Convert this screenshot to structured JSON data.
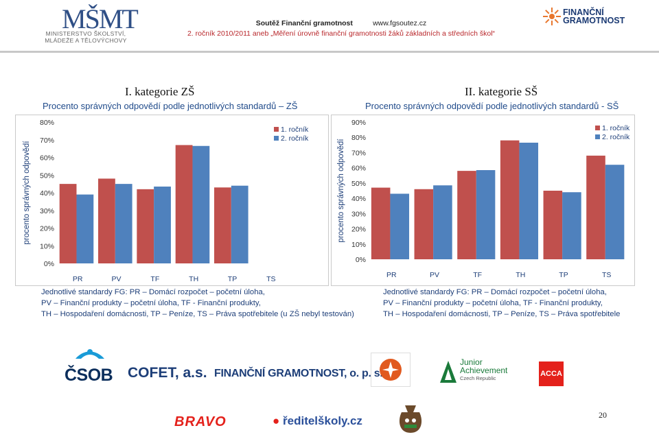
{
  "header": {
    "msmt_letters": "MŠMT",
    "msmt_line1": "MINISTERSTVO ŠKOLSTVÍ,",
    "msmt_line2": "MLÁDEŽE A TĚLOVÝCHOVY",
    "contest": "Soutěž Finanční gramotnost",
    "website": "www.fgsoutez.cz",
    "subtitle": "2. ročník 2010/2011 aneb „Měření úrovně finanční gramotnosti žáků základních a středních škol“",
    "fg_line1": "FINANČNÍ",
    "fg_line2": "GRAMOTNOST"
  },
  "left": {
    "category": "I. kategorie ZŠ",
    "heading": "Procento správných odpovědí podle jednotlivých standardů – ZŠ",
    "desc1": "Jednotlivé standardy FG: PR – Domácí rozpočet – početní úloha,",
    "desc2": "PV – Finanční produkty – početní úloha, TF - Finanční produkty,",
    "desc3": "TH – Hospodaření domácnosti, TP – Peníze, TS – Práva spotřebitele (u ZŠ nebyl testován)"
  },
  "right": {
    "category": "II. kategorie SŠ",
    "heading": "Procento správných odpovědí podle jednotlivých standardů - SŠ",
    "desc1": "Jednotlivé standardy FG: PR – Domácí rozpočet – početní úloha,",
    "desc2": "PV – Finanční produkty – početní úloha, TF - Finanční produkty,",
    "desc3": "TH – Hospodaření domácnosti, TP – Peníze, TS – Práva spotřebitele"
  },
  "sponsors": {
    "csob": "ČSOB",
    "cofet": "COFET, a.s.",
    "fg_ops": "FINANČNÍ GRAMOTNOST, o. p. s.",
    "ja_line1": "Junior",
    "ja_line2": "Achievement",
    "ja_line3": "Czech Republic",
    "acca": "ACCA",
    "bravo": "BRAVO",
    "reditel": "ředitelškoly.cz"
  },
  "page_number": "20",
  "colors": {
    "series1": "#c0504d",
    "series2": "#4f81bd",
    "subtitle": "#b8262a",
    "heading": "#1f4a8a"
  },
  "chart_data": [
    {
      "type": "bar",
      "categories": [
        "PR",
        "PV",
        "TF",
        "TH",
        "TP",
        "TS"
      ],
      "series": [
        {
          "name": "1. ročník",
          "values": [
            45,
            48,
            42,
            67,
            43,
            null
          ]
        },
        {
          "name": "2. ročník",
          "values": [
            39,
            45,
            43.5,
            66.5,
            44,
            null
          ]
        }
      ],
      "ylabel": "procento správných odpovědí",
      "ylim": [
        0,
        80
      ],
      "yticks": [
        "0%",
        "10%",
        "20%",
        "30%",
        "40%",
        "50%",
        "60%",
        "70%",
        "80%"
      ],
      "legend": "top-right",
      "grid": false
    },
    {
      "type": "bar",
      "categories": [
        "PR",
        "PV",
        "TF",
        "TH",
        "TP",
        "TS"
      ],
      "series": [
        {
          "name": "1. ročník",
          "values": [
            47,
            46,
            58,
            78,
            45,
            68
          ]
        },
        {
          "name": "2. ročník",
          "values": [
            43,
            48.5,
            58.5,
            76.5,
            44,
            62
          ]
        }
      ],
      "ylabel": "procento správných odpovědí",
      "ylim": [
        0,
        90
      ],
      "yticks": [
        "0%",
        "10%",
        "20%",
        "30%",
        "40%",
        "50%",
        "60%",
        "70%",
        "80%",
        "90%"
      ],
      "legend": "top-right",
      "grid": false
    }
  ]
}
